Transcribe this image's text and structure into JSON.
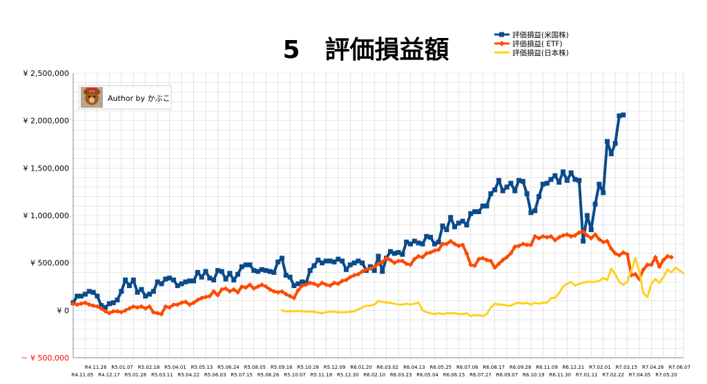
{
  "chart_data": {
    "type": "line",
    "title": "5　評価損益額",
    "author_label": "Author by かぶこ",
    "ylim": [
      -500000,
      2500000
    ],
    "y_ticks": [
      {
        "value": 2500000,
        "label": "¥ 2,500,000"
      },
      {
        "value": 2000000,
        "label": "¥ 2,000,000"
      },
      {
        "value": 1500000,
        "label": "¥ 1,500,000"
      },
      {
        "value": 1000000,
        "label": "¥ 1,000,000"
      },
      {
        "value": 500000,
        "label": "¥ 500,000"
      },
      {
        "value": 0,
        "label": "¥ 0"
      },
      {
        "value": -500000,
        "label": "－ ¥ 500,000"
      }
    ],
    "x_tick_labels_upper": [
      "R4.11.26",
      "R5.01.07",
      "R5.02.18",
      "R5.04.01",
      "R5.05.13",
      "R5.06.24",
      "R5.08.05",
      "R5.09.16",
      "R5.10.28",
      "R5.12.09",
      "R6.01.20",
      "R6.03.02",
      "R6.04.13",
      "R6.05.25",
      "R6.07.06",
      "R6.08.17",
      "R6.09.28",
      "R6.11.09",
      "R6.12.21",
      "R7.02.01",
      "R7.03.15",
      "R7.04.26",
      "R7.06.07"
    ],
    "x_tick_labels_lower": [
      "R4.11.05",
      "R4.12.17",
      "R5.01.28",
      "R5.03.11",
      "R5.04.22",
      "R5.06.03",
      "R5.07.15",
      "R5.08.26",
      "R5.10.07",
      "R5.11.18",
      "R5.12.30",
      "R6.02.10",
      "R6.03.23",
      "R6.05.04",
      "R6.06.15",
      "R6.07.27",
      "R6.09.07",
      "R6.10.19",
      "R6.11.30",
      "R7.01.11",
      "R7.02.22",
      "R7.04.05",
      "R7.05.20"
    ],
    "legend_position": "top-right",
    "series": [
      {
        "name": "評価損益(米国株)",
        "color": "#0b4a8b",
        "marker": "square",
        "start_index": 0,
        "values": [
          80000,
          150000,
          150000,
          170000,
          200000,
          190000,
          150000,
          50000,
          30000,
          70000,
          80000,
          110000,
          200000,
          320000,
          260000,
          320000,
          190000,
          220000,
          150000,
          170000,
          200000,
          300000,
          280000,
          330000,
          340000,
          320000,
          260000,
          280000,
          300000,
          310000,
          310000,
          400000,
          350000,
          410000,
          340000,
          320000,
          420000,
          410000,
          330000,
          390000,
          320000,
          380000,
          460000,
          480000,
          480000,
          420000,
          410000,
          430000,
          420000,
          410000,
          400000,
          510000,
          550000,
          370000,
          350000,
          260000,
          280000,
          300000,
          290000,
          420000,
          470000,
          530000,
          500000,
          520000,
          520000,
          510000,
          540000,
          520000,
          430000,
          480000,
          500000,
          520000,
          500000,
          420000,
          460000,
          420000,
          570000,
          410000,
          550000,
          620000,
          600000,
          610000,
          590000,
          720000,
          700000,
          730000,
          710000,
          700000,
          780000,
          770000,
          700000,
          720000,
          890000,
          850000,
          980000,
          880000,
          920000,
          940000,
          900000,
          1020000,
          1040000,
          1040000,
          1100000,
          1100000,
          1230000,
          1270000,
          1370000,
          1260000,
          1300000,
          1340000,
          1260000,
          1370000,
          1360000,
          1230000,
          1030000,
          1050000,
          1200000,
          1330000,
          1340000,
          1380000,
          1420000,
          1350000,
          1460000,
          1370000,
          1450000,
          1380000,
          1370000,
          730000,
          1000000,
          850000,
          1120000,
          1330000,
          1240000,
          1780000,
          1650000,
          1760000,
          2050000,
          2060000
        ]
      },
      {
        "name": "評価損益( ETF)",
        "color": "#ff4a00",
        "marker": "diamond",
        "start_index": 0,
        "values": [
          70000,
          60000,
          70000,
          80000,
          60000,
          50000,
          40000,
          20000,
          -10000,
          -30000,
          -10000,
          -10000,
          -20000,
          0,
          20000,
          40000,
          30000,
          40000,
          20000,
          40000,
          -20000,
          -30000,
          -40000,
          40000,
          30000,
          60000,
          60000,
          80000,
          90000,
          60000,
          80000,
          110000,
          130000,
          140000,
          150000,
          200000,
          160000,
          220000,
          230000,
          200000,
          220000,
          190000,
          250000,
          240000,
          270000,
          230000,
          250000,
          270000,
          250000,
          220000,
          200000,
          190000,
          200000,
          170000,
          150000,
          130000,
          210000,
          260000,
          270000,
          290000,
          280000,
          260000,
          290000,
          270000,
          260000,
          290000,
          280000,
          310000,
          320000,
          350000,
          370000,
          380000,
          410000,
          430000,
          440000,
          460000,
          490000,
          510000,
          550000,
          530000,
          500000,
          520000,
          520000,
          490000,
          480000,
          540000,
          570000,
          560000,
          600000,
          610000,
          630000,
          640000,
          700000,
          700000,
          730000,
          700000,
          680000,
          690000,
          600000,
          480000,
          470000,
          540000,
          550000,
          530000,
          520000,
          450000,
          490000,
          530000,
          560000,
          600000,
          670000,
          680000,
          700000,
          690000,
          690000,
          780000,
          760000,
          780000,
          770000,
          780000,
          740000,
          770000,
          790000,
          800000,
          780000,
          790000,
          820000,
          830000,
          790000,
          760000,
          800000,
          750000,
          720000,
          730000,
          650000,
          600000,
          580000,
          610000,
          590000,
          370000,
          380000,
          330000,
          430000,
          480000,
          480000,
          560000,
          460000,
          530000,
          570000,
          560000
        ]
      },
      {
        "name": "評価損益(日本株)",
        "color": "#ffd11a",
        "marker": "none",
        "start_index": 52,
        "values": [
          0,
          -10000,
          -10000,
          -10000,
          -5000,
          -10000,
          -15000,
          -10000,
          -15000,
          -25000,
          -30000,
          -20000,
          -15000,
          -15000,
          -20000,
          -20000,
          -20000,
          -15000,
          -10000,
          10000,
          30000,
          50000,
          50000,
          60000,
          100000,
          90000,
          80000,
          80000,
          70000,
          60000,
          60000,
          70000,
          60000,
          70000,
          80000,
          0,
          -20000,
          -30000,
          -40000,
          -30000,
          -40000,
          -30000,
          -30000,
          -30000,
          -40000,
          -40000,
          -30000,
          -60000,
          -50000,
          -50000,
          -60000,
          -40000,
          30000,
          70000,
          60000,
          60000,
          50000,
          50000,
          70000,
          80000,
          70000,
          80000,
          60000,
          80000,
          70000,
          80000,
          80000,
          130000,
          130000,
          180000,
          250000,
          280000,
          300000,
          260000,
          280000,
          290000,
          300000,
          300000,
          300000,
          310000,
          340000,
          320000,
          440000,
          380000,
          300000,
          270000,
          300000,
          420000,
          550000,
          410000,
          180000,
          140000,
          280000,
          330000,
          290000,
          350000,
          430000,
          400000,
          450000,
          420000,
          390000
        ]
      }
    ]
  }
}
